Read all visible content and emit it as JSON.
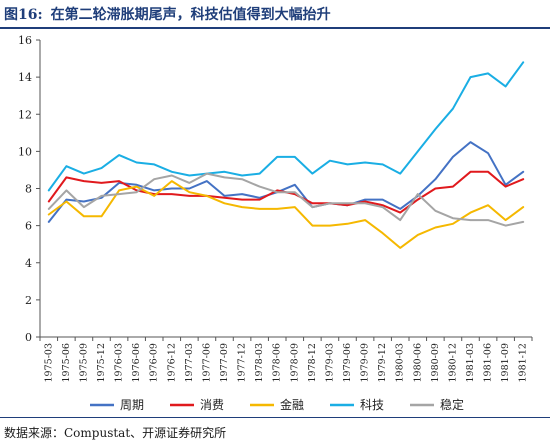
{
  "figure": {
    "number": "图16:",
    "title": "在第二轮滞胀期尾声，科技估值得到大幅抬升",
    "source": "数据来源：Compustat、开源证券研究所"
  },
  "chart_data": {
    "type": "line",
    "title": "在第二轮滞胀期尾声，科技估值得到大幅抬升",
    "xlabel": "",
    "ylabel": "",
    "ylim": [
      0,
      16
    ],
    "yticks": [
      0,
      2,
      4,
      6,
      8,
      10,
      12,
      14,
      16
    ],
    "grid": false,
    "legend_position": "bottom",
    "x": [
      "1975-03",
      "1975-06",
      "1975-09",
      "1975-12",
      "1976-03",
      "1976-06",
      "1976-09",
      "1976-12",
      "1977-03",
      "1977-06",
      "1977-09",
      "1977-12",
      "1978-03",
      "1978-06",
      "1978-09",
      "1978-12",
      "1979-03",
      "1979-06",
      "1979-09",
      "1979-12",
      "1980-03",
      "1980-06",
      "1980-09",
      "1980-12",
      "1981-03",
      "1981-06",
      "1981-09",
      "1981-12"
    ],
    "series": [
      {
        "name": "周期",
        "color": "#4472c4",
        "values": [
          6.2,
          7.4,
          7.3,
          7.5,
          8.3,
          8.2,
          7.9,
          8.0,
          8.0,
          8.4,
          7.6,
          7.7,
          7.5,
          7.8,
          8.2,
          7.0,
          7.2,
          7.1,
          7.4,
          7.4,
          6.9,
          7.6,
          8.5,
          9.7,
          10.5,
          9.9,
          8.2,
          8.9
        ]
      },
      {
        "name": "消费",
        "color": "#e0191d",
        "values": [
          7.3,
          8.6,
          8.4,
          8.3,
          8.4,
          7.9,
          7.7,
          7.7,
          7.6,
          7.6,
          7.5,
          7.4,
          7.4,
          7.9,
          7.7,
          7.2,
          7.2,
          7.1,
          7.3,
          7.1,
          6.7,
          7.4,
          8.0,
          8.1,
          8.9,
          8.9,
          8.1,
          8.5
        ]
      },
      {
        "name": "金融",
        "color": "#f5b800",
        "values": [
          6.6,
          7.3,
          6.5,
          6.5,
          7.9,
          8.1,
          7.6,
          8.4,
          7.8,
          7.6,
          7.2,
          7.0,
          6.9,
          6.9,
          7.0,
          6.0,
          6.0,
          6.1,
          6.3,
          5.6,
          4.8,
          5.5,
          5.9,
          6.1,
          6.7,
          7.1,
          6.3,
          7.0
        ]
      },
      {
        "name": "科技",
        "color": "#1aaee4",
        "values": [
          7.9,
          9.2,
          8.8,
          9.1,
          9.8,
          9.4,
          9.3,
          8.9,
          8.7,
          8.8,
          8.9,
          8.7,
          8.8,
          9.7,
          9.7,
          8.8,
          9.5,
          9.3,
          9.4,
          9.3,
          8.8,
          10.0,
          11.2,
          12.3,
          14.0,
          14.2,
          13.5,
          14.8
        ]
      },
      {
        "name": "稳定",
        "color": "#a5a5a5",
        "values": [
          6.9,
          7.9,
          7.0,
          7.6,
          7.7,
          7.8,
          8.5,
          8.7,
          8.3,
          8.8,
          8.6,
          8.5,
          8.1,
          7.8,
          7.8,
          7.0,
          7.2,
          7.2,
          7.2,
          7.0,
          6.3,
          7.7,
          6.8,
          6.4,
          6.3,
          6.3,
          6.0,
          6.2
        ]
      }
    ]
  }
}
